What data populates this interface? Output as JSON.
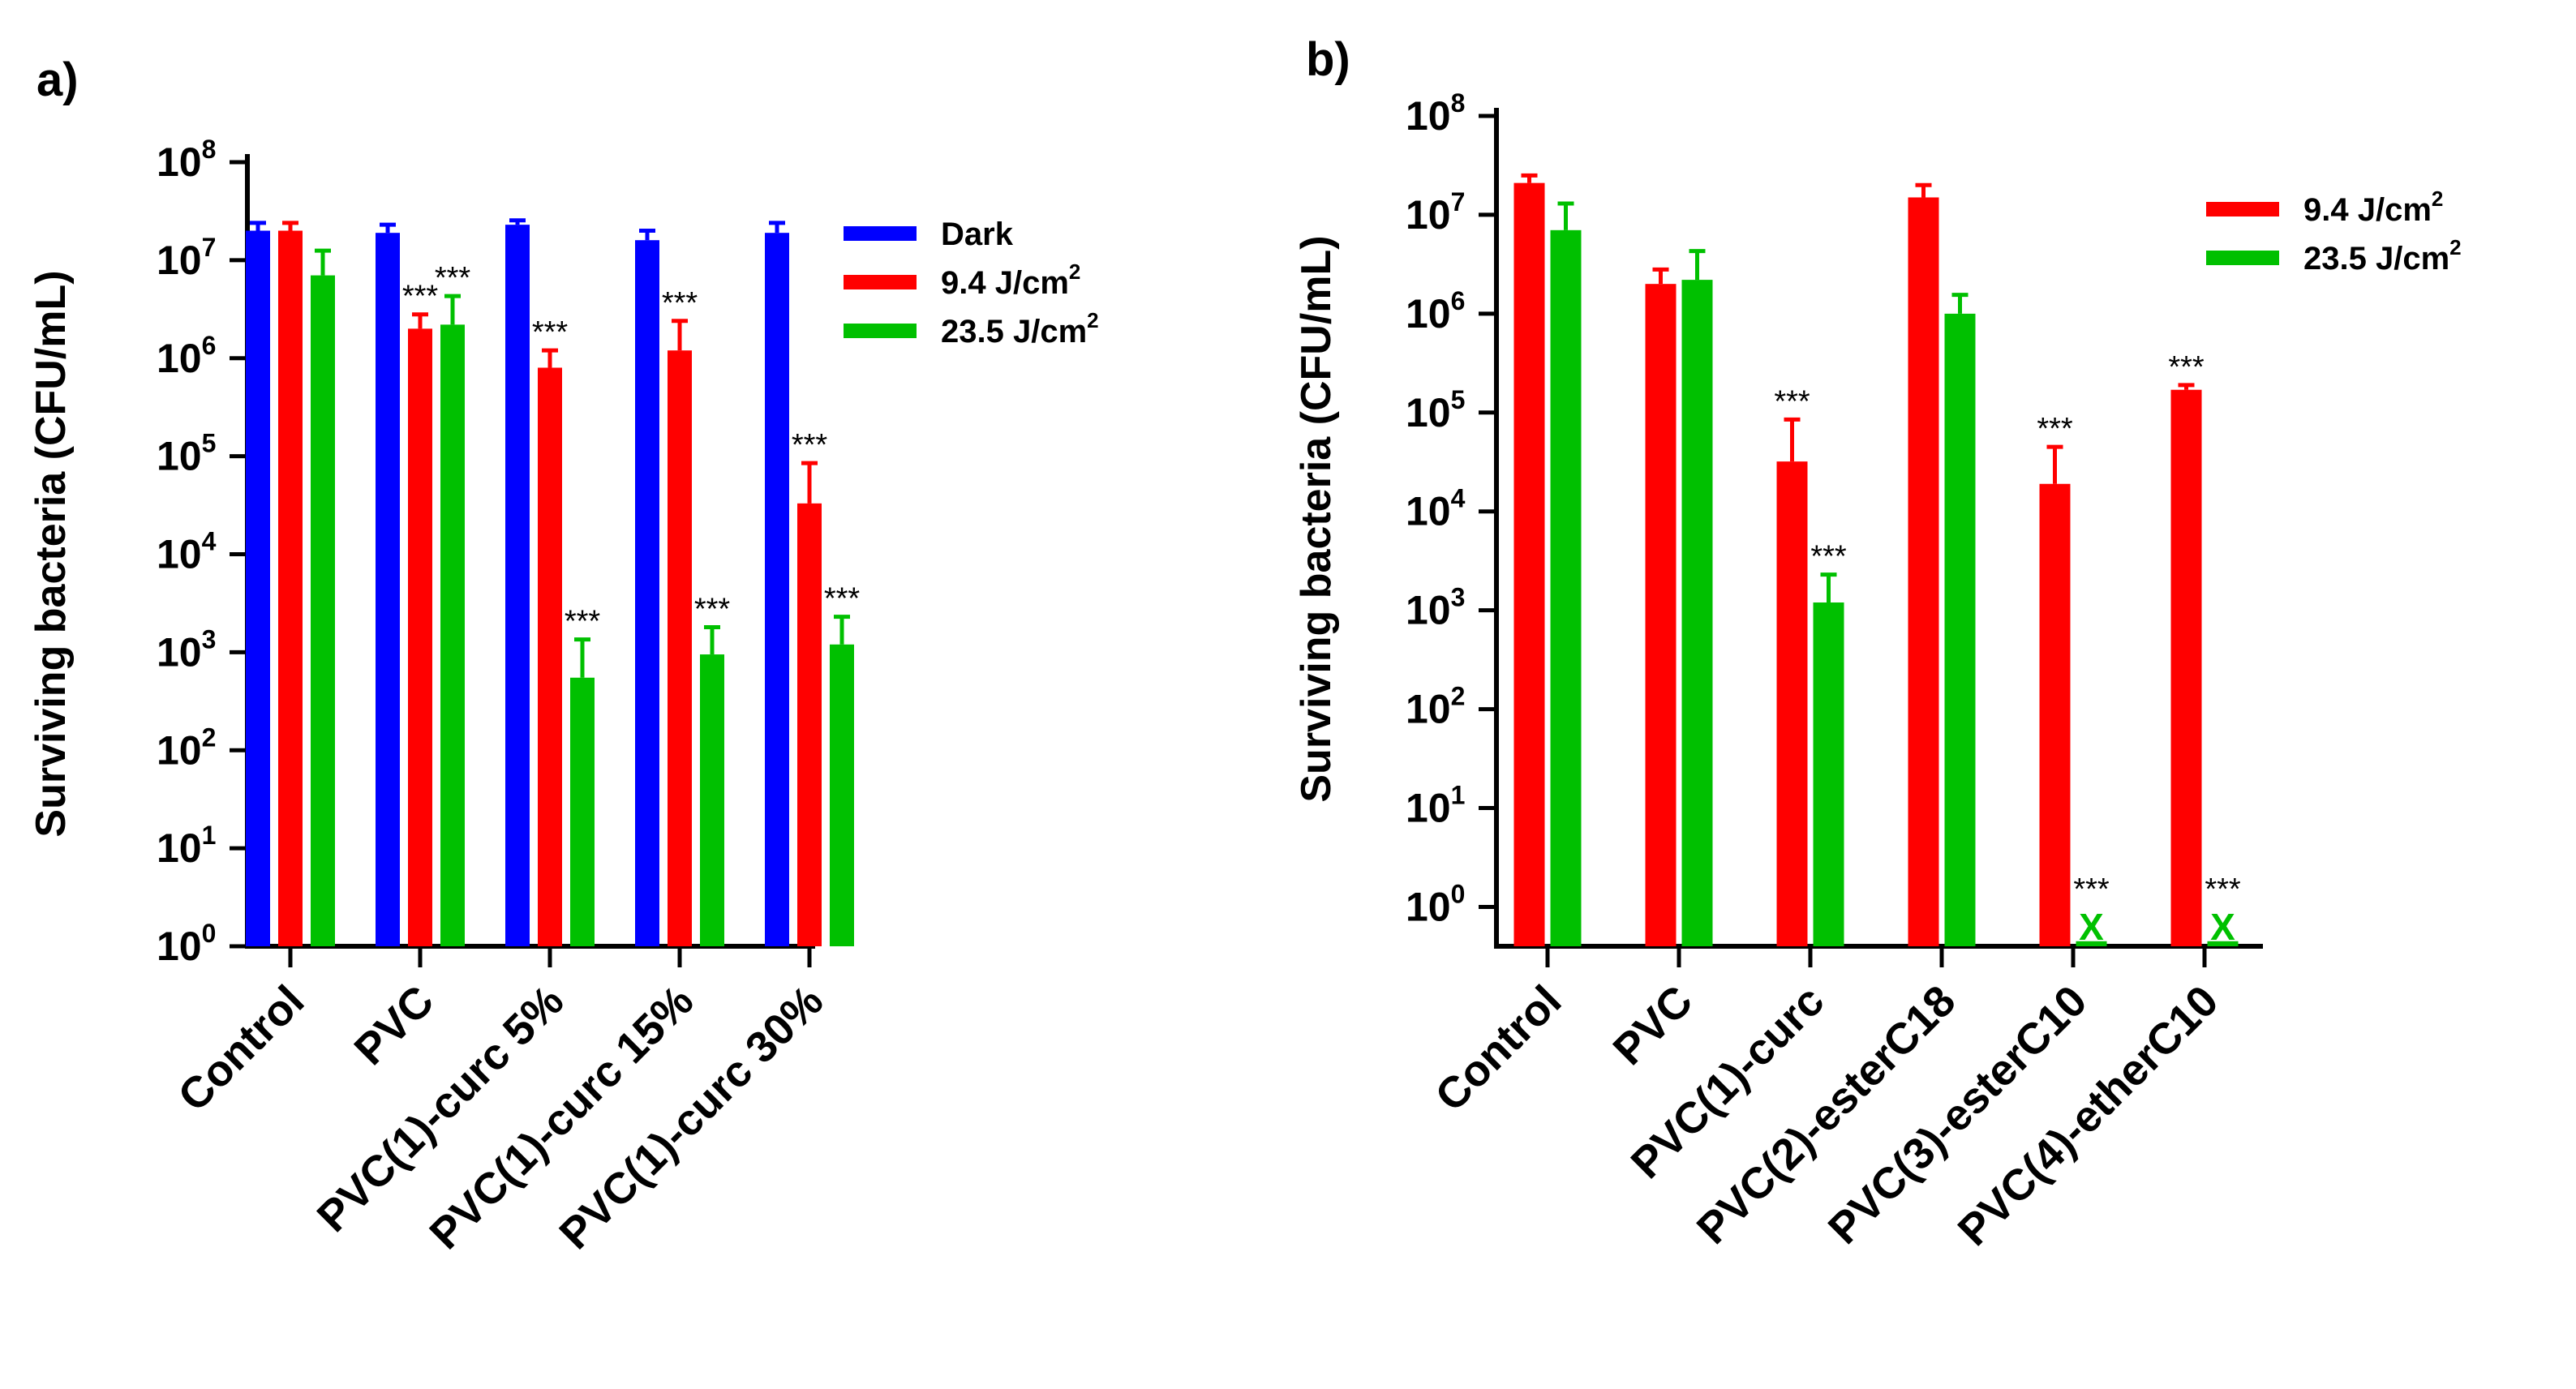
{
  "chart_data": [
    {
      "panel": "a)",
      "type": "bar",
      "yscale": "log",
      "ylabel": "Surviving bacteria (CFU/mL)",
      "ylim": [
        1,
        100000000
      ],
      "yticks": [
        {
          "base": "10",
          "exp": "0",
          "value": 1
        },
        {
          "base": "10",
          "exp": "1",
          "value": 10
        },
        {
          "base": "10",
          "exp": "2",
          "value": 100
        },
        {
          "base": "10",
          "exp": "3",
          "value": 1000
        },
        {
          "base": "10",
          "exp": "4",
          "value": 10000
        },
        {
          "base": "10",
          "exp": "5",
          "value": 100000
        },
        {
          "base": "10",
          "exp": "6",
          "value": 1000000
        },
        {
          "base": "10",
          "exp": "7",
          "value": 10000000
        },
        {
          "base": "10",
          "exp": "8",
          "value": 100000000
        }
      ],
      "categories": [
        "Control",
        "PVC",
        "PVC(1)-curc 5%",
        "PVC(1)-curc 15%",
        "PVC(1)-curc 30%"
      ],
      "series": [
        {
          "name": "Dark",
          "color": "#0000ff",
          "values": [
            20000000,
            19000000,
            23000000,
            16000000,
            19000000
          ],
          "err_upper": [
            24000000,
            23000000,
            25500000,
            20000000,
            24000000
          ],
          "sig": [
            "",
            "",
            "",
            "",
            ""
          ]
        },
        {
          "name": "9.4 J/cm2",
          "color": "#ff0000",
          "values": [
            20000000,
            2000000,
            800000,
            1200000,
            33000
          ],
          "err_upper": [
            24000000,
            2800000,
            1200000,
            2400000,
            85000
          ],
          "sig": [
            "",
            "***",
            "***",
            "***",
            "***"
          ]
        },
        {
          "name": "23.5 J/cm2",
          "color": "#00c000",
          "values": [
            7000000,
            2200000,
            550,
            950,
            1200
          ],
          "err_upper": [
            12500000,
            4300000,
            1350,
            1800,
            2300
          ],
          "sig": [
            "",
            "***",
            "***",
            "***",
            "***"
          ]
        }
      ],
      "legend": [
        {
          "name": "Dark",
          "main": "Dark",
          "sup": "",
          "color": "#0000ff"
        },
        {
          "name": "9.4 J/cm2",
          "main": "9.4 J/cm",
          "sup": "2",
          "color": "#ff0000"
        },
        {
          "name": "23.5 J/cm2",
          "main": "23.5 J/cm",
          "sup": "2",
          "color": "#00c000"
        }
      ],
      "legend_position": "top-right"
    },
    {
      "panel": "b)",
      "type": "bar",
      "yscale": "log",
      "ylabel": "Surviving bacteria (CFU/mL)",
      "ylim": [
        0.4,
        100000000
      ],
      "yticks": [
        {
          "base": "10",
          "exp": "0",
          "value": 1
        },
        {
          "base": "10",
          "exp": "1",
          "value": 10
        },
        {
          "base": "10",
          "exp": "2",
          "value": 100
        },
        {
          "base": "10",
          "exp": "3",
          "value": 1000
        },
        {
          "base": "10",
          "exp": "4",
          "value": 10000
        },
        {
          "base": "10",
          "exp": "5",
          "value": 100000
        },
        {
          "base": "10",
          "exp": "6",
          "value": 1000000
        },
        {
          "base": "10",
          "exp": "7",
          "value": 10000000
        },
        {
          "base": "10",
          "exp": "8",
          "value": 100000000
        }
      ],
      "categories": [
        "Control",
        "PVC",
        "PVC(1)-curc",
        "PVC(2)-esterC18",
        "PVC(3)-esterC10",
        "PVC(4)-etherC10"
      ],
      "series": [
        {
          "name": "9.4 J/cm2",
          "color": "#ff0000",
          "values": [
            21000000,
            2000000,
            32000,
            15000000,
            19000,
            170000
          ],
          "err_upper": [
            25000000,
            2800000,
            85000,
            20000000,
            45000,
            190000
          ],
          "sig": [
            "",
            "",
            "***",
            "",
            "***",
            "***"
          ],
          "marker": [
            "",
            "",
            "",
            "",
            "",
            ""
          ]
        },
        {
          "name": "23.5 J/cm2",
          "color": "#00c000",
          "values": [
            7000000,
            2200000,
            1200,
            1000000,
            0.45,
            0.45
          ],
          "err_upper": [
            13000000,
            4300000,
            2300,
            1550000,
            null,
            null
          ],
          "sig": [
            "",
            "",
            "***",
            "",
            "***",
            "***"
          ],
          "marker": [
            "",
            "",
            "",
            "",
            "X",
            "X"
          ]
        }
      ],
      "legend": [
        {
          "name": "9.4 J/cm2",
          "main": "9.4 J/cm",
          "sup": "2",
          "color": "#ff0000"
        },
        {
          "name": "23.5 J/cm2",
          "main": "23.5 J/cm",
          "sup": "2",
          "color": "#00c000"
        }
      ],
      "legend_position": "top-right"
    }
  ]
}
